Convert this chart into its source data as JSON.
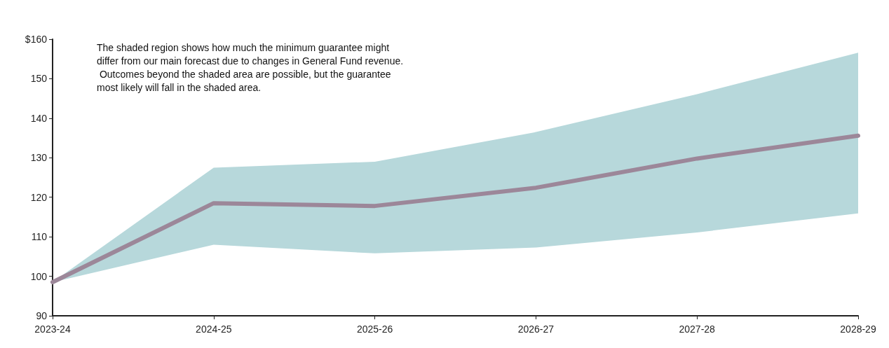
{
  "chart_data": {
    "type": "line",
    "categories": [
      "2023-24",
      "2024-25",
      "2025-26",
      "2026-27",
      "2027-28",
      "2028-29"
    ],
    "series": [
      {
        "color": "#9c8799",
        "values": [
          98.5,
          118.5,
          117.8,
          122.4,
          129.8,
          135.6
        ],
        "lower": [
          98.5,
          108,
          105.8,
          107.3,
          111.1,
          115.9
        ],
        "upper": [
          98.5,
          127.5,
          129,
          136.5,
          146.1,
          156.6
        ]
      }
    ],
    "ylim": [
      90,
      160
    ],
    "yticks": [
      90,
      100,
      110,
      120,
      130,
      140,
      150,
      {
        "value": 160,
        "label": "$160"
      }
    ],
    "annotations": [
      "The shaded region shows how much the minimum guarantee might differ from our main forecast due to changes in General Fund revenue. Outcomes beyond the shaded area are possible, but the guarantee most likely will fall in the shaded area."
    ],
    "grid": false,
    "marker": "none",
    "line_style": "solid"
  }
}
